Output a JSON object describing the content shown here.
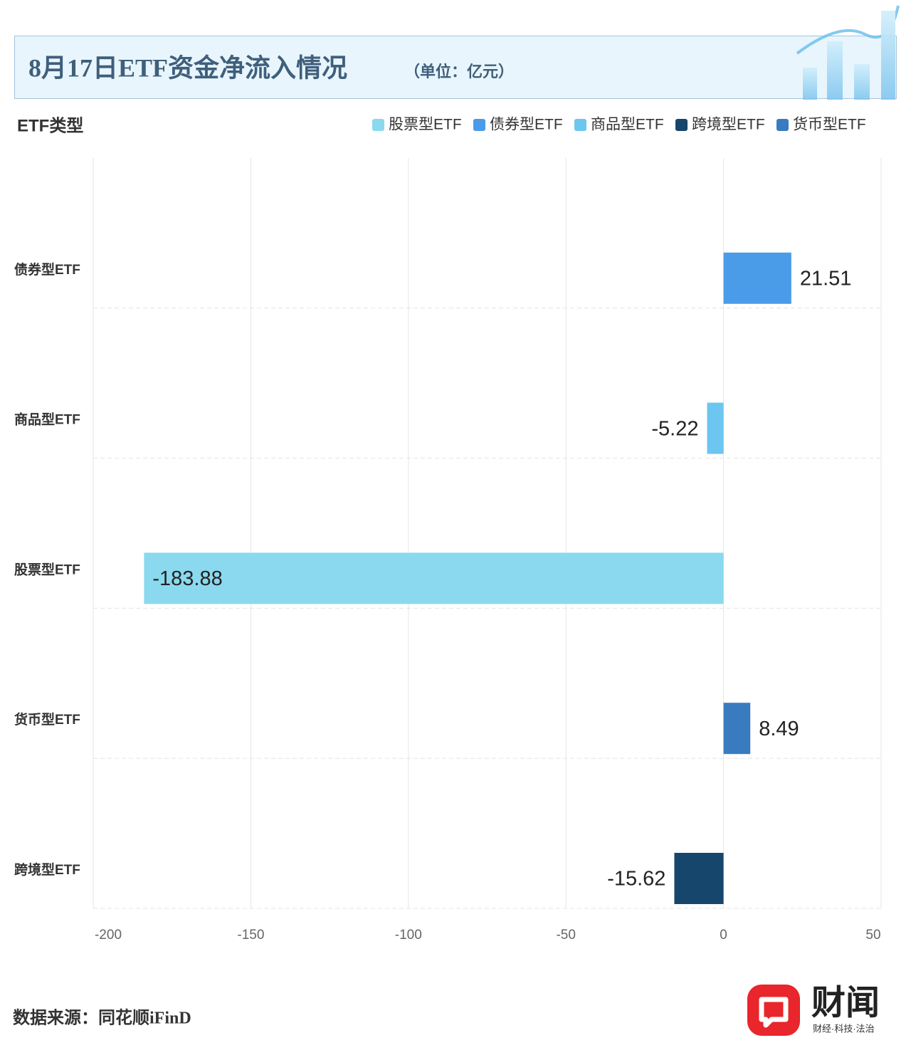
{
  "chart_data": {
    "type": "barh",
    "title": "8月17日ETF资金净流入情况",
    "subtitle": "（单位：亿元）",
    "y_axis_label": "ETF类型",
    "source": "数据来源：同花顺iFinD",
    "categories": [
      "债券型ETF",
      "商品型ETF",
      "股票型ETF",
      "货币型ETF",
      "跨境型ETF"
    ],
    "series": [
      {
        "name": "股票型ETF",
        "color": "#8ad9ef",
        "values": [
          null,
          null,
          -183.88,
          null,
          null
        ]
      },
      {
        "name": "债券型ETF",
        "color": "#4a9be8",
        "values": [
          21.51,
          null,
          null,
          null,
          null
        ]
      },
      {
        "name": "商品型ETF",
        "color": "#6cc6f0",
        "values": [
          null,
          -5.22,
          null,
          null,
          null
        ]
      },
      {
        "name": "跨境型ETF",
        "color": "#17466c",
        "values": [
          null,
          null,
          null,
          null,
          -15.62
        ]
      },
      {
        "name": "货币型ETF",
        "color": "#3a7bbf",
        "values": [
          null,
          null,
          null,
          8.49,
          null
        ]
      }
    ],
    "xlim": [
      -200,
      50
    ],
    "xticks": [
      -200,
      -150,
      -100,
      -50,
      0,
      50
    ],
    "grid": true
  },
  "brand": {
    "name": "财闻",
    "tagline": "财经·科技·法治"
  }
}
